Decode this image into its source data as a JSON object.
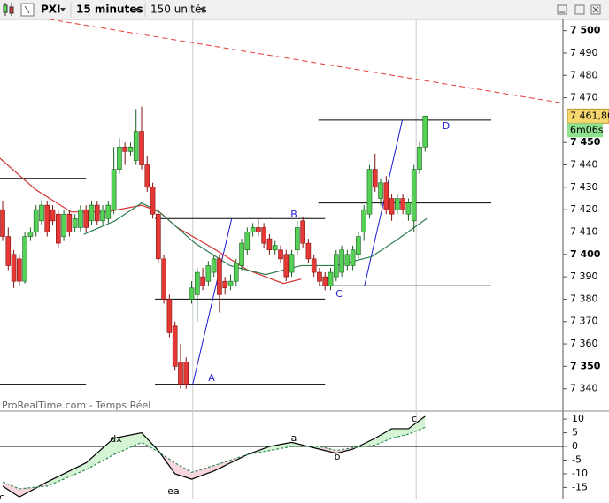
{
  "toolbar": {
    "symbol": "PXI",
    "interval": "15 minutes",
    "units": "150 unités"
  },
  "chart_data": [
    {
      "type": "candlestick",
      "xlim": [
        -0.48,
        100.8
      ],
      "ylim": [
        7330,
        7505
      ],
      "yticks": [
        {
          "value": 7500,
          "label": "7 500"
        },
        {
          "value": 7490,
          "label": "7 490"
        },
        {
          "value": 7480,
          "label": "7 480"
        },
        {
          "value": 7470,
          "label": "7 470"
        },
        {
          "value": 7450,
          "label": "7 450"
        },
        {
          "value": 7440,
          "label": "7 440"
        },
        {
          "value": 7430,
          "label": "7 430"
        },
        {
          "value": 7420,
          "label": "7 420"
        },
        {
          "value": 7410,
          "label": "7 410"
        },
        {
          "value": 7400,
          "label": "7 400"
        },
        {
          "value": 7390,
          "label": "7 390"
        },
        {
          "value": 7380,
          "label": "7 380"
        },
        {
          "value": 7370,
          "label": "7 370"
        },
        {
          "value": 7360,
          "label": "7 360"
        },
        {
          "value": 7350,
          "label": "7 350"
        },
        {
          "value": 7340,
          "label": "7 340"
        }
      ],
      "up_color": "#55d155",
      "down_color": "#e53935",
      "candles": [
        [
          7420,
          7424,
          7406,
          7408
        ],
        [
          7408,
          7412,
          7393,
          7395
        ],
        [
          7400,
          7402,
          7385,
          7388
        ],
        [
          7398,
          7400,
          7386,
          7388
        ],
        [
          7388,
          7410,
          7387,
          7408
        ],
        [
          7408,
          7412,
          7406,
          7410
        ],
        [
          7410,
          7422,
          7408,
          7420
        ],
        [
          7415,
          7424,
          7413,
          7422
        ],
        [
          7422,
          7424,
          7408,
          7410
        ],
        [
          7420,
          7422,
          7413,
          7415
        ],
        [
          7418,
          7420,
          7403,
          7405
        ],
        [
          7408,
          7420,
          7406,
          7418
        ],
        [
          7418,
          7420,
          7408,
          7410
        ],
        [
          7412,
          7418,
          7410,
          7416
        ],
        [
          7412,
          7422,
          7410,
          7420
        ],
        [
          7420,
          7422,
          7410,
          7412
        ],
        [
          7415,
          7424,
          7413,
          7422
        ],
        [
          7422,
          7424,
          7413,
          7415
        ],
        [
          7415,
          7422,
          7413,
          7420
        ],
        [
          7416,
          7424,
          7414,
          7422
        ],
        [
          7420,
          7448,
          7418,
          7438
        ],
        [
          7438,
          7452,
          7436,
          7448
        ],
        [
          7448,
          7450,
          7440,
          7446
        ],
        [
          7446,
          7450,
          7444,
          7448
        ],
        [
          7442,
          7465,
          7440,
          7455
        ],
        [
          7455,
          7466,
          7438,
          7440
        ],
        [
          7440,
          7444,
          7428,
          7430
        ],
        [
          7430,
          7432,
          7416,
          7418
        ],
        [
          7418,
          7420,
          7396,
          7398
        ],
        [
          7398,
          7400,
          7378,
          7380
        ],
        [
          7380,
          7382,
          7363,
          7365
        ],
        [
          7368,
          7370,
          7348,
          7350
        ],
        [
          7352,
          7360,
          7340,
          7342
        ],
        [
          7352,
          7354,
          7340,
          7342
        ],
        [
          7380,
          7388,
          7378,
          7385
        ],
        [
          7382,
          7394,
          7370,
          7392
        ],
        [
          7390,
          7394,
          7384,
          7386
        ],
        [
          7388,
          7397,
          7386,
          7395
        ],
        [
          7392,
          7400,
          7390,
          7398
        ],
        [
          7398,
          7400,
          7374,
          7382
        ],
        [
          7388,
          7390,
          7382,
          7385
        ],
        [
          7386,
          7391,
          7384,
          7388
        ],
        [
          7388,
          7398,
          7386,
          7396
        ],
        [
          7395,
          7407,
          7393,
          7405
        ],
        [
          7402,
          7412,
          7400,
          7410
        ],
        [
          7410,
          7414,
          7408,
          7412
        ],
        [
          7412,
          7416,
          7408,
          7410
        ],
        [
          7412,
          7414,
          7403,
          7405
        ],
        [
          7407,
          7409,
          7400,
          7402
        ],
        [
          7402,
          7406,
          7400,
          7404
        ],
        [
          7402,
          7404,
          7396,
          7398
        ],
        [
          7400,
          7402,
          7388,
          7390
        ],
        [
          7392,
          7402,
          7390,
          7400
        ],
        [
          7402,
          7415,
          7400,
          7412
        ],
        [
          7415,
          7417,
          7403,
          7405
        ],
        [
          7405,
          7407,
          7396,
          7398
        ],
        [
          7398,
          7400,
          7390,
          7392
        ],
        [
          7392,
          7394,
          7386,
          7388
        ],
        [
          7390,
          7392,
          7384,
          7386
        ],
        [
          7386,
          7394,
          7384,
          7392
        ],
        [
          7390,
          7402,
          7388,
          7400
        ],
        [
          7392,
          7404,
          7390,
          7402
        ],
        [
          7395,
          7402,
          7393,
          7400
        ],
        [
          7395,
          7404,
          7393,
          7402
        ],
        [
          7400,
          7410,
          7398,
          7408
        ],
        [
          7410,
          7422,
          7406,
          7420
        ],
        [
          7418,
          7440,
          7416,
          7438
        ],
        [
          7438,
          7445,
          7428,
          7430
        ],
        [
          7425,
          7434,
          7422,
          7432
        ],
        [
          7432,
          7435,
          7418,
          7420
        ],
        [
          7425,
          7427,
          7415,
          7418
        ],
        [
          7420,
          7427,
          7418,
          7425
        ],
        [
          7425,
          7427,
          7418,
          7420
        ],
        [
          7418,
          7425,
          7415,
          7423
        ],
        [
          7415,
          7440,
          7410,
          7438
        ],
        [
          7438,
          7450,
          7436,
          7448
        ],
        [
          7448,
          7462,
          7446,
          7461.8
        ]
      ],
      "moving_averages": [
        {
          "color": "#d32f2f",
          "x": [
            -0.5,
            5.9,
            12.3,
            18.6,
            25,
            28.2,
            31.4,
            37.7,
            44.1,
            50.5,
            53.7
          ],
          "values": [
            7443,
            7429,
            7419,
            7419,
            7422,
            7419,
            7412,
            7403,
            7393,
            7387,
            7389
          ]
        },
        {
          "color": "#2e7d50",
          "x": [
            14.6,
            20.2,
            25,
            28.2,
            34.6,
            40.9,
            47.3,
            53.7,
            60,
            66.4,
            71.2,
            76.3
          ],
          "values": [
            7409,
            7415,
            7423,
            7419,
            7405,
            7395,
            7391,
            7395,
            7395,
            7399,
            7407,
            7416
          ]
        }
      ],
      "levels": [
        {
          "value": 7434,
          "x": [
            -0.48,
            15
          ]
        },
        {
          "value": 7342,
          "x": [
            -0.48,
            15
          ]
        },
        {
          "value": 7416,
          "x": [
            27.4,
            58
          ]
        },
        {
          "value": 7380,
          "x": [
            27.4,
            58
          ]
        },
        {
          "value": 7342,
          "x": [
            27.4,
            58
          ]
        },
        {
          "value": 7460,
          "x": [
            56.8,
            87.9
          ]
        },
        {
          "value": 7423,
          "x": [
            56.8,
            87.9
          ]
        },
        {
          "value": 7386,
          "x": [
            56.8,
            87.9
          ]
        }
      ],
      "trendlines": [
        {
          "color": "#1a1acc",
          "dashed": false,
          "x": [
            34.2,
            41.2
          ],
          "values": [
            7342,
            7416
          ]
        },
        {
          "color": "#1a1acc",
          "dashed": false,
          "x": [
            65.1,
            71.9
          ],
          "values": [
            7386,
            7460
          ]
        },
        {
          "color": "#e53935",
          "dashed": true,
          "x": [
            8.3,
            100.8
          ],
          "values": [
            7505.1,
            7467.6
          ]
        }
      ],
      "separators": [
        34.2,
        74.4
      ],
      "annotations": [
        "A",
        "B",
        "C",
        "D"
      ],
      "last_price": {
        "value": 7461.8,
        "label": "7 461,80"
      },
      "countdown": "6m06s",
      "watermark": "ProRealTime.com - Temps Réel"
    },
    {
      "type": "line",
      "xlim": [
        -0.48,
        100.8
      ],
      "ylim": [
        -19.4,
        12.3
      ],
      "yticks": [
        10,
        5,
        0,
        -5,
        -10,
        -15
      ],
      "x": [
        0,
        3,
        8,
        15,
        20,
        25,
        28,
        31,
        34,
        38,
        44,
        48,
        52,
        57,
        60,
        63,
        67,
        70,
        73,
        76
      ],
      "series": [
        {
          "color": "#000000",
          "dashed": false,
          "values": [
            -14.5,
            -18.5,
            -13,
            -6,
            3,
            5,
            -1.5,
            -10,
            -12,
            -9,
            -3,
            0,
            1.5,
            -1,
            -2.5,
            -1,
            3,
            6.5,
            6.5,
            11
          ]
        },
        {
          "color": "#2e8b57",
          "dashed": true,
          "values": [
            -13,
            -15.5,
            -14.5,
            -8.5,
            -3,
            1.5,
            -2,
            -6,
            -9.5,
            -7,
            -3,
            -1.5,
            0,
            0,
            -1.5,
            -0.5,
            0.5,
            3,
            4.5,
            7
          ]
        }
      ],
      "fill_colors": [
        "#d4f4d4",
        "#f9d5de"
      ],
      "annotations": [
        "dx",
        "ea",
        "a",
        "b",
        "c",
        "c"
      ]
    }
  ]
}
